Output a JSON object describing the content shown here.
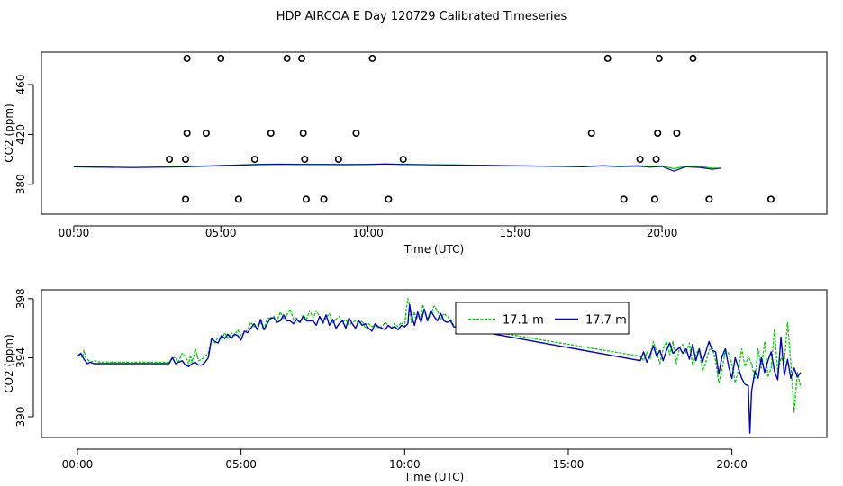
{
  "title": "HDP AIRCOA E  Day 120729  Calibrated Timeseries",
  "colors": {
    "green": "#00cc00",
    "blue": "#0000cc",
    "black": "#000000"
  },
  "chart_data": [
    {
      "type": "line",
      "name": "top-panel",
      "xlabel": "Time (UTC)",
      "ylabel": "CO2 (ppm)",
      "xlim": [
        -1.1,
        25.6
      ],
      "ylim": [
        356,
        486
      ],
      "xticks": [
        0,
        5,
        10,
        15,
        20
      ],
      "xtick_labels": [
        "00:00",
        "05:00",
        "10:00",
        "15:00",
        "20:00"
      ],
      "yticks": [
        380,
        420,
        460
      ],
      "ytick_labels": [
        "380",
        "420",
        "460"
      ],
      "series": [
        {
          "name": "17.1 m",
          "color": "#00cc00",
          "width": 1.2,
          "x": [
            0,
            2,
            3.3,
            3.8,
            4.5,
            5.2,
            5.8,
            6.3,
            7.0,
            7.8,
            8.5,
            9.3,
            10.0,
            10.6,
            11.2,
            12.5,
            14.0,
            16.0,
            17.0,
            17.3,
            18.0,
            18.5,
            19.2,
            19.6,
            20.0,
            20.4,
            20.8,
            21.3,
            21.7,
            22.0
          ],
          "y": [
            394,
            393.5,
            394,
            394.2,
            394.7,
            395.3,
            395.6,
            396,
            396.2,
            396,
            396,
            395.8,
            396,
            396.4,
            396,
            395.6,
            395.2,
            394.6,
            394.3,
            394.2,
            395,
            394.4,
            395,
            394.1,
            394.8,
            392.5,
            394.5,
            394.2,
            393,
            392.8
          ]
        },
        {
          "name": "17.7 m",
          "color": "#0000cc",
          "width": 1.2,
          "x": [
            0,
            2,
            3.3,
            3.8,
            4.5,
            5.2,
            5.8,
            6.3,
            7.0,
            7.8,
            8.5,
            9.3,
            10.0,
            10.6,
            11.2,
            12.5,
            14.0,
            16.0,
            17.0,
            17.3,
            18.0,
            18.5,
            19.2,
            19.6,
            20.0,
            20.4,
            20.8,
            21.3,
            21.7,
            22.0
          ],
          "y": [
            394,
            393.4,
            393.8,
            394,
            394.5,
            395.1,
            395.4,
            395.8,
            396,
            395.9,
            395.9,
            395.7,
            395.9,
            396.2,
            395.9,
            395.5,
            395.1,
            394.5,
            394.1,
            394,
            394.8,
            394.2,
            394.6,
            393.7,
            394.3,
            390.5,
            394,
            393.5,
            392,
            393
          ]
        }
      ],
      "points": {
        "name": "flask samples",
        "marker": "open-circle",
        "x": [
          3.85,
          5.0,
          7.25,
          7.75,
          10.15,
          18.15,
          19.9,
          21.05,
          3.85,
          4.5,
          6.7,
          7.8,
          9.6,
          17.6,
          19.85,
          20.5,
          3.25,
          3.8,
          6.15,
          7.85,
          9.0,
          11.2,
          19.25,
          19.8,
          3.8,
          5.6,
          7.9,
          8.5,
          10.7,
          18.7,
          19.75,
          21.6,
          23.7
        ],
        "y": [
          481,
          481,
          481,
          481,
          481,
          481,
          481,
          481,
          421,
          421,
          421,
          421,
          421,
          421,
          421,
          421,
          400,
          400,
          400,
          400,
          400,
          400,
          400,
          400,
          368,
          368,
          368,
          368,
          368,
          368,
          368,
          368,
          368
        ]
      }
    },
    {
      "type": "line",
      "name": "bottom-panel",
      "xlabel": "Time (UTC)",
      "ylabel": "CO2 (ppm)",
      "xlim": [
        -1.1,
        22.9
      ],
      "ylim": [
        388.6,
        398.6
      ],
      "xticks": [
        0,
        5,
        10,
        15,
        20
      ],
      "xtick_labels": [
        "00:00",
        "05:00",
        "10:00",
        "15:00",
        "20:00"
      ],
      "yticks": [
        390,
        394,
        398
      ],
      "ytick_labels": [
        "390",
        "394",
        "398"
      ],
      "legend": {
        "position": "top-right",
        "entries": [
          "17.1 m",
          "17.7 m"
        ]
      },
      "series": [
        {
          "name": "17.1 m",
          "color": "#00cc00",
          "width": 1.3,
          "x": [
            0,
            0.1,
            0.15,
            0.2,
            0.25,
            0.3,
            0.35,
            0.4,
            0.5,
            0.7,
            1.0,
            1.5,
            2.0,
            2.5,
            2.8,
            2.9,
            3.0,
            3.05,
            3.1,
            3.2,
            3.3,
            3.4,
            3.45,
            3.5,
            3.55,
            3.6,
            3.7,
            3.8,
            3.9,
            4.0,
            4.1,
            4.2,
            4.3,
            4.4,
            4.5,
            4.6,
            4.7,
            4.8,
            4.9,
            5.0,
            5.1,
            5.2,
            5.3,
            5.4,
            5.5,
            5.6,
            5.7,
            5.8,
            5.9,
            6.0,
            6.1,
            6.2,
            6.3,
            6.4,
            6.5,
            6.6,
            6.7,
            6.8,
            6.9,
            7.0,
            7.1,
            7.2,
            7.3,
            7.4,
            7.5,
            7.6,
            7.7,
            7.8,
            7.9,
            8.0,
            8.1,
            8.2,
            8.3,
            8.4,
            8.5,
            8.6,
            8.7,
            8.8,
            8.9,
            9.0,
            9.1,
            9.2,
            9.3,
            9.4,
            9.5,
            9.6,
            9.7,
            9.8,
            9.9,
            10.0,
            10.05,
            10.1,
            10.15,
            10.2,
            10.3,
            10.35,
            10.4,
            10.5,
            10.55,
            10.6,
            10.7,
            10.8,
            10.9,
            11.0,
            11.1,
            11.2,
            11.3,
            11.4,
            11.5,
            17.2,
            17.3,
            17.4,
            17.5,
            17.6,
            17.7,
            17.8,
            17.9,
            18.0,
            18.1,
            18.2,
            18.3,
            18.4,
            18.5,
            18.6,
            18.7,
            18.8,
            18.9,
            19.0,
            19.1,
            19.2,
            19.3,
            19.4,
            19.5,
            19.6,
            19.7,
            19.8,
            19.9,
            20.0,
            20.1,
            20.2,
            20.3,
            20.4,
            20.5,
            20.6,
            20.7,
            20.8,
            20.9,
            21.0,
            21.1,
            21.2,
            21.3,
            21.4,
            21.5,
            21.6,
            21.7,
            21.8,
            21.9,
            22.0,
            22.1
          ],
          "y": [
            394.1,
            394.2,
            394.0,
            394.5,
            394.0,
            393.9,
            393.8,
            393.7,
            393.8,
            393.7,
            393.7,
            393.7,
            393.7,
            393.7,
            393.7,
            394.0,
            394.0,
            393.7,
            393.8,
            394.3,
            394.1,
            393.6,
            394.2,
            393.7,
            394.1,
            394.6,
            393.8,
            393.9,
            394.1,
            394.3,
            395.3,
            395.0,
            395.4,
            395.2,
            395.7,
            395.3,
            395.7,
            395.5,
            395.9,
            395.5,
            395.7,
            395.9,
            396.4,
            396.1,
            396.2,
            396.4,
            395.9,
            396.7,
            396.6,
            396.8,
            396.5,
            397.1,
            396.6,
            396.9,
            397.3,
            396.6,
            396.7,
            396.4,
            396.9,
            396.6,
            397.2,
            396.7,
            397.2,
            396.8,
            396.3,
            396.7,
            397.0,
            396.3,
            396.6,
            396.8,
            396.4,
            396.6,
            396.2,
            396.4,
            396.5,
            396.3,
            396.5,
            396.0,
            396.3,
            396.1,
            396.3,
            396.0,
            396.1,
            396.4,
            396.2,
            396.0,
            396.3,
            396.1,
            396.4,
            396.1,
            397.3,
            398.0,
            397.5,
            396.4,
            397.1,
            396.6,
            396.8,
            396.5,
            397.6,
            397.3,
            396.6,
            396.9,
            397.5,
            397.2,
            396.6,
            397.0,
            396.8,
            396.6,
            396.2,
            394.1,
            393.8,
            394.4,
            393.9,
            395.1,
            394.4,
            393.6,
            394.6,
            395.1,
            394.2,
            395.1,
            393.6,
            394.7,
            394.9,
            394.3,
            395.0,
            393.5,
            394.2,
            394.6,
            393.1,
            393.7,
            394.5,
            394.7,
            393.8,
            392.3,
            393.2,
            394.5,
            394.3,
            393.6,
            392.3,
            393.2,
            394.6,
            393.4,
            394.1,
            393.6,
            392.6,
            394.6,
            393.3,
            395.1,
            392.7,
            393.3,
            395.9,
            393.0,
            394.0,
            393.7,
            396.4,
            393.6,
            390.3,
            393.0,
            392.0
          ],
          "dash": "3,1.5"
        },
        {
          "name": "17.7 m",
          "color": "#0000cc",
          "width": 1.4,
          "x": [
            0,
            0.1,
            0.2,
            0.3,
            0.4,
            0.5,
            0.7,
            1.0,
            1.5,
            2.0,
            2.5,
            2.8,
            2.9,
            3.0,
            3.1,
            3.2,
            3.3,
            3.4,
            3.5,
            3.6,
            3.7,
            3.8,
            3.9,
            4.0,
            4.1,
            4.2,
            4.3,
            4.4,
            4.5,
            4.6,
            4.7,
            4.8,
            4.9,
            5.0,
            5.1,
            5.2,
            5.3,
            5.4,
            5.5,
            5.6,
            5.7,
            5.8,
            5.9,
            6.0,
            6.1,
            6.2,
            6.3,
            6.4,
            6.5,
            6.6,
            6.7,
            6.8,
            6.9,
            7.0,
            7.1,
            7.2,
            7.3,
            7.4,
            7.5,
            7.6,
            7.7,
            7.8,
            7.9,
            8.0,
            8.1,
            8.2,
            8.3,
            8.4,
            8.5,
            8.6,
            8.7,
            8.8,
            8.9,
            9.0,
            9.1,
            9.2,
            9.3,
            9.4,
            9.5,
            9.6,
            9.7,
            9.8,
            9.9,
            10.0,
            10.1,
            10.15,
            10.2,
            10.3,
            10.4,
            10.5,
            10.6,
            10.7,
            10.8,
            10.9,
            11.0,
            11.1,
            11.2,
            11.3,
            11.4,
            11.5,
            17.2,
            17.3,
            17.4,
            17.5,
            17.6,
            17.7,
            17.8,
            17.9,
            18.0,
            18.1,
            18.2,
            18.3,
            18.4,
            18.5,
            18.6,
            18.7,
            18.8,
            18.9,
            19.0,
            19.1,
            19.2,
            19.3,
            19.4,
            19.5,
            19.6,
            19.7,
            19.8,
            19.9,
            20.0,
            20.1,
            20.2,
            20.3,
            20.4,
            20.5,
            20.55,
            20.6,
            20.7,
            20.8,
            20.9,
            21.0,
            21.1,
            21.2,
            21.3,
            21.4,
            21.5,
            21.6,
            21.7,
            21.8,
            21.9,
            22.0,
            22.1
          ],
          "y": [
            394.1,
            394.3,
            393.9,
            393.6,
            393.7,
            393.6,
            393.6,
            393.6,
            393.6,
            393.6,
            393.6,
            393.6,
            394.0,
            393.6,
            393.7,
            393.8,
            393.5,
            393.4,
            393.6,
            393.7,
            393.5,
            393.5,
            393.7,
            394.0,
            395.3,
            395.1,
            395.0,
            395.5,
            395.3,
            395.6,
            395.3,
            395.6,
            395.5,
            395.2,
            395.8,
            395.7,
            396.0,
            396.3,
            395.9,
            396.6,
            395.9,
            396.3,
            396.7,
            396.7,
            396.4,
            396.5,
            396.9,
            396.5,
            396.5,
            396.3,
            396.6,
            396.4,
            396.8,
            396.5,
            396.5,
            396.5,
            396.2,
            396.8,
            396.4,
            396.9,
            396.2,
            396.6,
            396.0,
            396.3,
            396.5,
            396.0,
            396.7,
            396.3,
            396.0,
            396.5,
            396.2,
            396.3,
            396.0,
            395.8,
            396.3,
            396.1,
            396.0,
            395.9,
            396.2,
            396.0,
            396.1,
            395.9,
            396.2,
            396.1,
            396.3,
            397.6,
            396.9,
            396.2,
            397.1,
            396.4,
            397.3,
            396.5,
            397.2,
            396.8,
            396.5,
            397.0,
            396.5,
            396.4,
            396.5,
            396.1,
            393.8,
            394.4,
            393.7,
            394.2,
            394.8,
            394.1,
            394.5,
            393.8,
            394.5,
            395.0,
            394.3,
            394.5,
            394.7,
            394.3,
            394.6,
            393.9,
            394.9,
            393.8,
            394.6,
            393.7,
            394.4,
            395.1,
            394.5,
            394.4,
            392.9,
            394.1,
            394.6,
            393.4,
            392.6,
            394.0,
            393.3,
            392.6,
            392.2,
            392.1,
            388.9,
            391.7,
            393.1,
            392.6,
            394.0,
            393.0,
            393.8,
            394.4,
            393.1,
            392.5,
            395.4,
            392.8,
            393.9,
            392.6,
            393.3,
            392.7,
            393.0
          ]
        }
      ]
    }
  ]
}
